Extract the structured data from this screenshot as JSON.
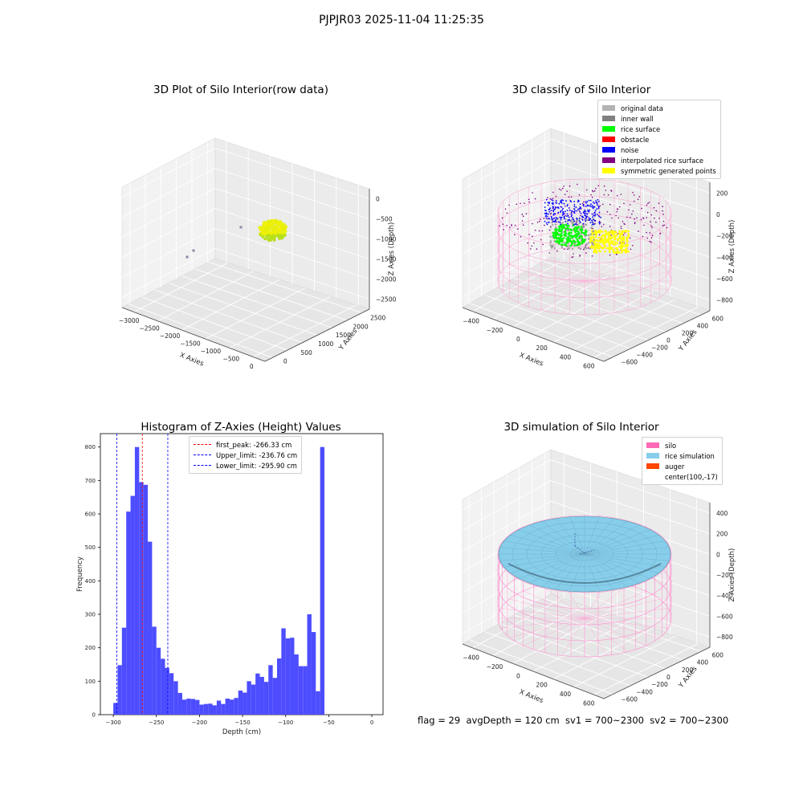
{
  "suptitle": "PJPJR03 2025-11-04 11:25:35",
  "footer": "flag = 29  avgDepth = 120 cm  sv1 = 700~2300  sv2 = 700~2300",
  "colors": {
    "original": "#b3b3b3",
    "inner_wall": "#808080",
    "rice_surface": "#00ff00",
    "obstacle": "#ff0000",
    "noise": "#0000ff",
    "interpolated": "#800080",
    "symmetric": "#ffff00",
    "silo": "#ff69b4",
    "rice_sim": "#87ceeb",
    "auger": "#ff4500",
    "hist_bar": "#4d4dff"
  },
  "chart_data": [
    {
      "type": "scatter",
      "title": "3D Plot of Silo Interior(row data)",
      "xlabel": "X Axies",
      "ylabel": "Y Axies",
      "zlabel": "Z Axies (Depth)",
      "x_ticks": [
        "−3000",
        "−2500",
        "−2000",
        "−1500",
        "−1000",
        "−500",
        "0"
      ],
      "y_ticks": [
        "0",
        "500",
        "1000",
        "1500",
        "2000",
        "2500"
      ],
      "z_ticks": [
        "0",
        "−500",
        "−1000",
        "−1500",
        "−2000",
        "−2500"
      ],
      "grid": true
    },
    {
      "type": "scatter",
      "title": "3D classify of Silo Interior",
      "xlabel": "X Axies",
      "ylabel": "Y Axies",
      "zlabel": "Z Axies (Depth)",
      "x_ticks": [
        "−400",
        "−200",
        "0",
        "200",
        "400",
        "600"
      ],
      "y_ticks": [
        "−600",
        "−400",
        "−200",
        "0",
        "200",
        "400",
        "600"
      ],
      "z_ticks": [
        "200",
        "0",
        "−200",
        "−400",
        "−600",
        "−800"
      ],
      "legend": [
        "original data",
        "inner wall",
        "rice surface",
        "obstacle",
        "noise",
        "interpolated rice surface",
        "symmetric generated points"
      ],
      "legend_position": "top-right",
      "grid": true
    },
    {
      "type": "bar",
      "title": "Histogram of Z-Axies (Height) Values",
      "xlabel": "Depth (cm)",
      "ylabel": "Frequency",
      "bin_width": 5,
      "bin_start": -300,
      "values": [
        35,
        148,
        260,
        607,
        654,
        800,
        695,
        687,
        517,
        263,
        200,
        167,
        140,
        124,
        100,
        65,
        45,
        48,
        47,
        44,
        30,
        32,
        33,
        28,
        42,
        32,
        48,
        45,
        50,
        72,
        66,
        100,
        90,
        123,
        113,
        98,
        148,
        110,
        168,
        258,
        228,
        230,
        180,
        145,
        145,
        300,
        247,
        70,
        800
      ],
      "xlim": [
        -315,
        13
      ],
      "ylim": [
        0,
        840
      ],
      "x_ticks": [
        "−300",
        "−250",
        "−200",
        "−150",
        "−100",
        "−50",
        "0"
      ],
      "y_ticks": [
        "0",
        "100",
        "200",
        "300",
        "400",
        "500",
        "600",
        "700",
        "800"
      ],
      "vlines": [
        {
          "label": "first_peak: -266.33 cm",
          "x": -266.33,
          "color": "#ff0000"
        },
        {
          "label": "Upper_limit: -236.76 cm",
          "x": -236.76,
          "color": "#0000ff"
        },
        {
          "label": "Lower_limit: -295.90 cm",
          "x": -295.9,
          "color": "#0000ff"
        }
      ],
      "legend_position": "top-center"
    },
    {
      "type": "surface",
      "title": "3D simulation of Silo Interior",
      "xlabel": "X Axies",
      "ylabel": "Y Axies",
      "zlabel": "Z Axies (Depth)",
      "x_ticks": [
        "−400",
        "−200",
        "0",
        "200",
        "400",
        "600"
      ],
      "y_ticks": [
        "−600",
        "−400",
        "−200",
        "0",
        "200",
        "400",
        "600"
      ],
      "z_ticks": [
        "400",
        "200",
        "0",
        "−200",
        "−400",
        "−600",
        "−800"
      ],
      "legend": [
        "silo",
        "rice simulation",
        "auger",
        "center(100,-17)"
      ],
      "legend_position": "top-right",
      "grid": true
    }
  ]
}
